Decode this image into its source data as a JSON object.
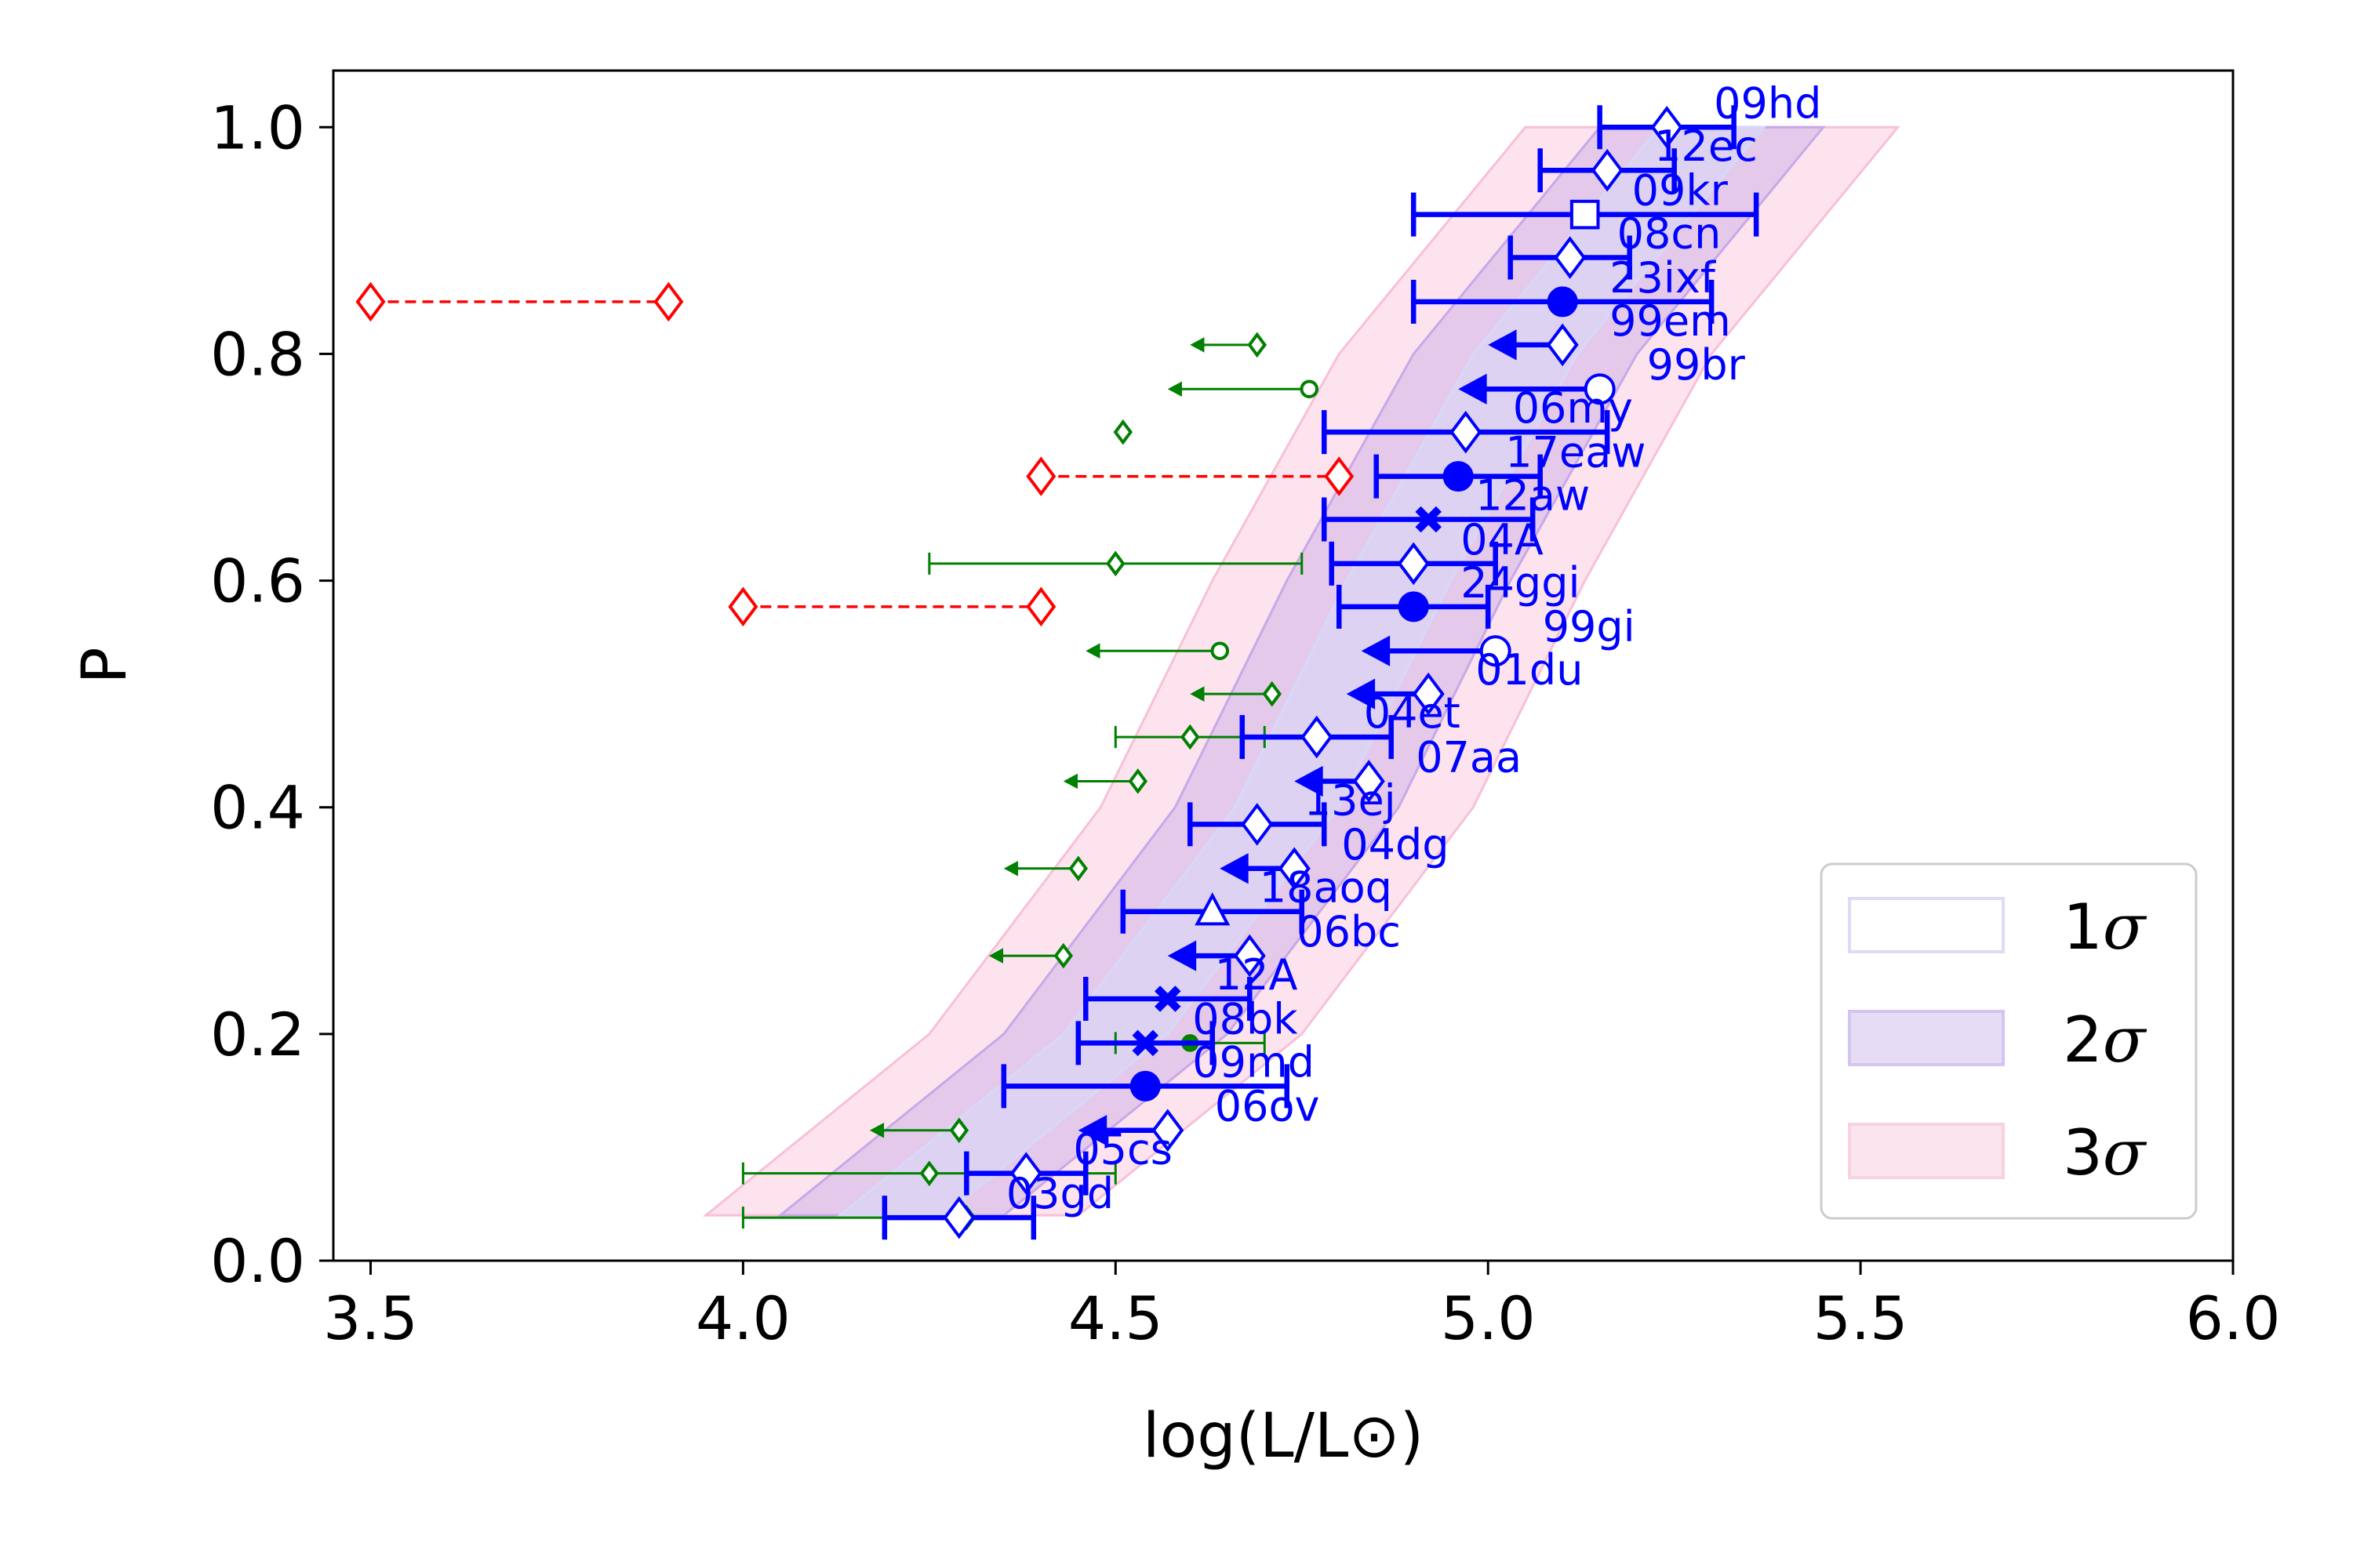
{
  "chart_data": {
    "type": "scatter",
    "xlabel": "log(L/L⊙)",
    "ylabel": "P",
    "xlim": [
      3.45,
      6.0
    ],
    "ylim": [
      0.0,
      1.05
    ],
    "xticks": [
      3.5,
      4.0,
      4.5,
      5.0,
      5.5,
      6.0
    ],
    "xtick_labels": [
      "3.5",
      "4.0",
      "4.5",
      "5.0",
      "5.5",
      "6.0"
    ],
    "yticks": [
      0.0,
      0.2,
      0.4,
      0.6,
      0.8,
      1.0
    ],
    "ytick_labels": [
      "0.0",
      "0.2",
      "0.4",
      "0.6",
      "0.8",
      "1.0"
    ],
    "colors": {
      "blue": "#0000ff",
      "green": "#008000",
      "red": "#ff0000",
      "band1": "#d8d8f8",
      "band2": "#c8a8e8",
      "band3": "#f8c0d8"
    },
    "legend": {
      "position": "lower-right",
      "entries": [
        {
          "num": "1",
          "sym": "σ"
        },
        {
          "num": "2",
          "sym": "σ"
        },
        {
          "num": "3",
          "sym": "σ"
        }
      ]
    },
    "bands": {
      "p": [
        0.04,
        0.2,
        0.4,
        0.6,
        0.8,
        1.0
      ],
      "center": [
        4.2,
        4.5,
        4.73,
        4.88,
        5.05,
        5.3
      ],
      "half_widths": [
        0.07,
        0.15,
        0.25
      ]
    },
    "blue_points": [
      {
        "name": "09hd",
        "p": 1.0,
        "x": 5.24,
        "lo": 5.15,
        "hi": 5.33,
        "marker": "diamond",
        "upper": false
      },
      {
        "name": "12ec",
        "p": 0.962,
        "x": 5.16,
        "lo": 5.07,
        "hi": 5.25,
        "marker": "diamond",
        "upper": false
      },
      {
        "name": "09kr",
        "p": 0.923,
        "x": 5.13,
        "lo": 4.9,
        "hi": 5.36,
        "marker": "square",
        "upper": false
      },
      {
        "name": "08cn",
        "p": 0.885,
        "x": 5.11,
        "lo": 5.03,
        "hi": 5.19,
        "marker": "diamond",
        "upper": false
      },
      {
        "name": "23ixf",
        "p": 0.846,
        "x": 5.1,
        "lo": 4.9,
        "hi": 5.3,
        "marker": "filled-circle",
        "upper": false
      },
      {
        "name": "99em",
        "p": 0.808,
        "x": 5.1,
        "lo": 5.0,
        "hi": null,
        "marker": "diamond",
        "upper": true
      },
      {
        "name": "99br",
        "p": 0.769,
        "x": 5.15,
        "lo": 4.96,
        "hi": null,
        "marker": "circle",
        "upper": true
      },
      {
        "name": "06my",
        "p": 0.731,
        "x": 4.97,
        "lo": 4.78,
        "hi": 5.16,
        "marker": "diamond",
        "upper": false
      },
      {
        "name": "17eaw",
        "p": 0.692,
        "x": 4.96,
        "lo": 4.85,
        "hi": 5.07,
        "marker": "filled-circle",
        "upper": false
      },
      {
        "name": "12aw",
        "p": 0.654,
        "x": 4.92,
        "lo": 4.78,
        "hi": 5.06,
        "marker": "cross",
        "upper": false
      },
      {
        "name": "04A",
        "p": 0.615,
        "x": 4.9,
        "lo": 4.79,
        "hi": 5.01,
        "marker": "diamond",
        "upper": false
      },
      {
        "name": "24ggi",
        "p": 0.577,
        "x": 4.9,
        "lo": 4.8,
        "hi": 5.0,
        "marker": "filled-circle",
        "upper": false
      },
      {
        "name": "99gi",
        "p": 0.538,
        "x": 5.01,
        "lo": 4.83,
        "hi": null,
        "marker": "circle",
        "upper": true
      },
      {
        "name": "01du",
        "p": 0.5,
        "x": 4.92,
        "lo": 4.81,
        "hi": null,
        "marker": "diamond",
        "upper": true
      },
      {
        "name": "04et",
        "p": 0.462,
        "x": 4.77,
        "lo": 4.67,
        "hi": 4.87,
        "marker": "diamond",
        "upper": false
      },
      {
        "name": "07aa",
        "p": 0.423,
        "x": 4.84,
        "lo": 4.74,
        "hi": null,
        "marker": "diamond",
        "upper": true
      },
      {
        "name": "13ej",
        "p": 0.385,
        "x": 4.69,
        "lo": 4.6,
        "hi": 4.78,
        "marker": "diamond",
        "upper": false
      },
      {
        "name": "04dg",
        "p": 0.346,
        "x": 4.74,
        "lo": 4.64,
        "hi": null,
        "marker": "diamond",
        "upper": true
      },
      {
        "name": "18aoq",
        "p": 0.308,
        "x": 4.63,
        "lo": 4.51,
        "hi": 4.75,
        "marker": "triangle",
        "upper": false
      },
      {
        "name": "06bc",
        "p": 0.269,
        "x": 4.68,
        "lo": 4.57,
        "hi": null,
        "marker": "diamond",
        "upper": true
      },
      {
        "name": "12A",
        "p": 0.231,
        "x": 4.57,
        "lo": 4.46,
        "hi": 4.68,
        "marker": "cross",
        "upper": false
      },
      {
        "name": "08bk",
        "p": 0.192,
        "x": 4.54,
        "lo": 4.45,
        "hi": 4.63,
        "marker": "cross",
        "upper": false
      },
      {
        "name": "09md",
        "p": 0.154,
        "x": 4.54,
        "lo": 4.35,
        "hi": 4.73,
        "marker": "filled-circle",
        "upper": false
      },
      {
        "name": "06ov",
        "p": 0.115,
        "x": 4.57,
        "lo": 4.45,
        "hi": null,
        "marker": "diamond",
        "upper": true
      },
      {
        "name": "05cs",
        "p": 0.077,
        "x": 4.38,
        "lo": 4.3,
        "hi": 4.46,
        "marker": "diamond",
        "upper": false
      },
      {
        "name": "03gd",
        "p": 0.038,
        "x": 4.29,
        "lo": 4.19,
        "hi": 4.39,
        "marker": "diamond",
        "upper": false
      }
    ],
    "green_points": [
      {
        "p": 0.808,
        "x": 4.69,
        "lo": 4.6,
        "hi": null,
        "marker": "diamond",
        "upper": true
      },
      {
        "p": 0.769,
        "x": 4.76,
        "lo": 4.57,
        "hi": null,
        "marker": "circle",
        "upper": true
      },
      {
        "p": 0.731,
        "x": 4.51,
        "lo": null,
        "hi": null,
        "marker": "diamond",
        "upper": false
      },
      {
        "p": 0.615,
        "x": 4.5,
        "lo": 4.25,
        "hi": 4.75,
        "marker": "diamond",
        "upper": false
      },
      {
        "p": 0.538,
        "x": 4.64,
        "lo": 4.46,
        "hi": null,
        "marker": "circle",
        "upper": true
      },
      {
        "p": 0.5,
        "x": 4.71,
        "lo": 4.6,
        "hi": null,
        "marker": "diamond",
        "upper": true
      },
      {
        "p": 0.462,
        "x": 4.6,
        "lo": 4.5,
        "hi": 4.7,
        "marker": "diamond",
        "upper": false
      },
      {
        "p": 0.423,
        "x": 4.53,
        "lo": 4.43,
        "hi": null,
        "marker": "diamond",
        "upper": true
      },
      {
        "p": 0.346,
        "x": 4.45,
        "lo": 4.35,
        "hi": null,
        "marker": "diamond",
        "upper": true
      },
      {
        "p": 0.269,
        "x": 4.43,
        "lo": 4.33,
        "hi": null,
        "marker": "diamond",
        "upper": true
      },
      {
        "p": 0.192,
        "x": 4.6,
        "lo": 4.5,
        "hi": 4.7,
        "marker": "filled-circle",
        "upper": false
      },
      {
        "p": 0.115,
        "x": 4.29,
        "lo": 4.17,
        "hi": null,
        "marker": "diamond",
        "upper": true
      },
      {
        "p": 0.077,
        "x": 4.25,
        "lo": 4.0,
        "hi": 4.5,
        "marker": "diamond",
        "upper": false
      },
      {
        "p": 0.038,
        "x": 4.3,
        "lo": 4.0,
        "hi": 4.3,
        "marker": "diamond",
        "upper": false
      }
    ],
    "red_ranges": [
      {
        "p": 0.846,
        "x1": 3.5,
        "x2": 3.9
      },
      {
        "p": 0.692,
        "x1": 4.4,
        "x2": 4.8
      },
      {
        "p": 0.577,
        "x1": 4.0,
        "x2": 4.4
      }
    ]
  }
}
